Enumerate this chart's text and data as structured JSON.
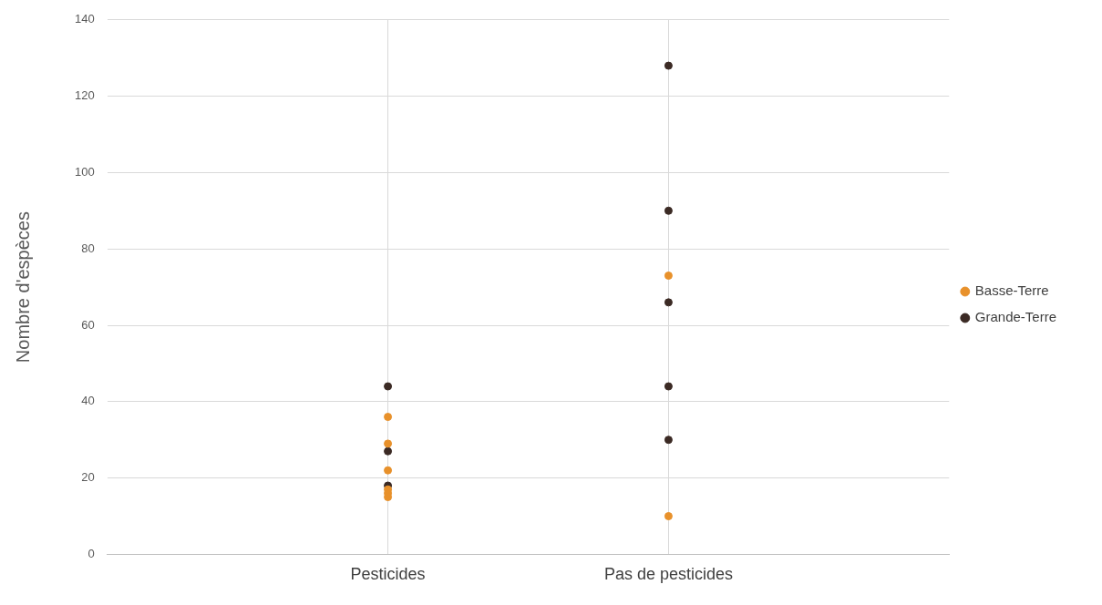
{
  "chart_data": {
    "type": "scatter",
    "ylabel": "Nombre d'espèces",
    "categories": [
      "Pesticides",
      "Pas de pesticides"
    ],
    "series": [
      {
        "name": "Basse-Terre",
        "color": "#e8912b",
        "x": [
          "Pesticides",
          "Pesticides",
          "Pesticides",
          "Pesticides",
          "Pesticides",
          "Pesticides",
          "Pas de pesticides",
          "Pas de pesticides"
        ],
        "values": [
          36,
          29,
          22,
          17,
          16,
          15,
          73,
          10
        ]
      },
      {
        "name": "Grande-Terre",
        "color": "#3b2a24",
        "x": [
          "Pesticides",
          "Pesticides",
          "Pesticides",
          "Pas de pesticides",
          "Pas de pesticides",
          "Pas de pesticides",
          "Pas de pesticides",
          "Pas de pesticides"
        ],
        "values": [
          44,
          27,
          18,
          128,
          90,
          66,
          44,
          30
        ]
      }
    ],
    "ylim": [
      0,
      140
    ],
    "yticks": [
      0,
      20,
      40,
      60,
      80,
      100,
      120,
      140
    ],
    "grid": true,
    "legend": "right",
    "marker": "circle"
  }
}
